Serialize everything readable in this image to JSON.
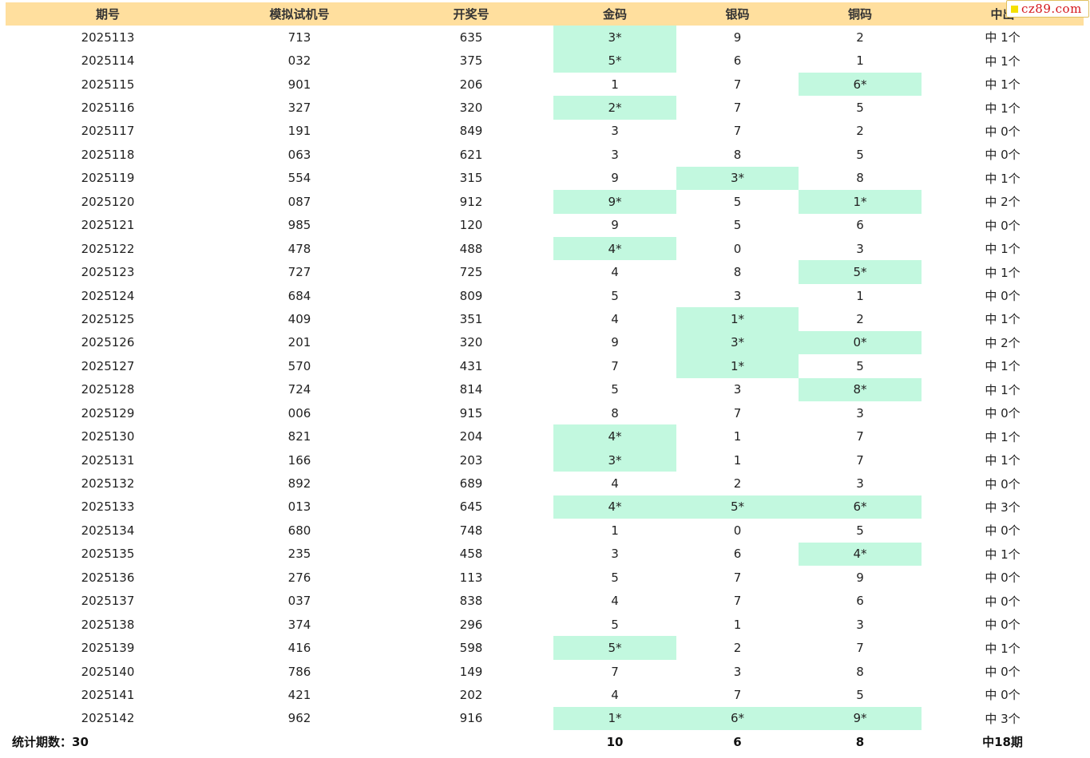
{
  "columns": [
    "期号",
    "模拟试机号",
    "开奖号",
    "金码",
    "银码",
    "铜码",
    "中出"
  ],
  "rows": [
    {
      "period": "2025113",
      "sim": "713",
      "draw": "635",
      "gold": "3*",
      "silver": "9",
      "copper": "2",
      "hits": "中 1个"
    },
    {
      "period": "2025114",
      "sim": "032",
      "draw": "375",
      "gold": "5*",
      "silver": "6",
      "copper": "1",
      "hits": "中 1个"
    },
    {
      "period": "2025115",
      "sim": "901",
      "draw": "206",
      "gold": "1",
      "silver": "7",
      "copper": "6*",
      "hits": "中 1个"
    },
    {
      "period": "2025116",
      "sim": "327",
      "draw": "320",
      "gold": "2*",
      "silver": "7",
      "copper": "5",
      "hits": "中 1个"
    },
    {
      "period": "2025117",
      "sim": "191",
      "draw": "849",
      "gold": "3",
      "silver": "7",
      "copper": "2",
      "hits": "中 0个"
    },
    {
      "period": "2025118",
      "sim": "063",
      "draw": "621",
      "gold": "3",
      "silver": "8",
      "copper": "5",
      "hits": "中 0个"
    },
    {
      "period": "2025119",
      "sim": "554",
      "draw": "315",
      "gold": "9",
      "silver": "3*",
      "copper": "8",
      "hits": "中 1个"
    },
    {
      "period": "2025120",
      "sim": "087",
      "draw": "912",
      "gold": "9*",
      "silver": "5",
      "copper": "1*",
      "hits": "中 2个"
    },
    {
      "period": "2025121",
      "sim": "985",
      "draw": "120",
      "gold": "9",
      "silver": "5",
      "copper": "6",
      "hits": "中 0个"
    },
    {
      "period": "2025122",
      "sim": "478",
      "draw": "488",
      "gold": "4*",
      "silver": "0",
      "copper": "3",
      "hits": "中 1个"
    },
    {
      "period": "2025123",
      "sim": "727",
      "draw": "725",
      "gold": "4",
      "silver": "8",
      "copper": "5*",
      "hits": "中 1个"
    },
    {
      "period": "2025124",
      "sim": "684",
      "draw": "809",
      "gold": "5",
      "silver": "3",
      "copper": "1",
      "hits": "中 0个"
    },
    {
      "period": "2025125",
      "sim": "409",
      "draw": "351",
      "gold": "4",
      "silver": "1*",
      "copper": "2",
      "hits": "中 1个"
    },
    {
      "period": "2025126",
      "sim": "201",
      "draw": "320",
      "gold": "9",
      "silver": "3*",
      "copper": "0*",
      "hits": "中 2个"
    },
    {
      "period": "2025127",
      "sim": "570",
      "draw": "431",
      "gold": "7",
      "silver": "1*",
      "copper": "5",
      "hits": "中 1个"
    },
    {
      "period": "2025128",
      "sim": "724",
      "draw": "814",
      "gold": "5",
      "silver": "3",
      "copper": "8*",
      "hits": "中 1个"
    },
    {
      "period": "2025129",
      "sim": "006",
      "draw": "915",
      "gold": "8",
      "silver": "7",
      "copper": "3",
      "hits": "中 0个"
    },
    {
      "period": "2025130",
      "sim": "821",
      "draw": "204",
      "gold": "4*",
      "silver": "1",
      "copper": "7",
      "hits": "中 1个"
    },
    {
      "period": "2025131",
      "sim": "166",
      "draw": "203",
      "gold": "3*",
      "silver": "1",
      "copper": "7",
      "hits": "中 1个"
    },
    {
      "period": "2025132",
      "sim": "892",
      "draw": "689",
      "gold": "4",
      "silver": "2",
      "copper": "3",
      "hits": "中 0个"
    },
    {
      "period": "2025133",
      "sim": "013",
      "draw": "645",
      "gold": "4*",
      "silver": "5*",
      "copper": "6*",
      "hits": "中 3个"
    },
    {
      "period": "2025134",
      "sim": "680",
      "draw": "748",
      "gold": "1",
      "silver": "0",
      "copper": "5",
      "hits": "中 0个"
    },
    {
      "period": "2025135",
      "sim": "235",
      "draw": "458",
      "gold": "3",
      "silver": "6",
      "copper": "4*",
      "hits": "中 1个"
    },
    {
      "period": "2025136",
      "sim": "276",
      "draw": "113",
      "gold": "5",
      "silver": "7",
      "copper": "9",
      "hits": "中 0个"
    },
    {
      "period": "2025137",
      "sim": "037",
      "draw": "838",
      "gold": "4",
      "silver": "7",
      "copper": "6",
      "hits": "中 0个"
    },
    {
      "period": "2025138",
      "sim": "374",
      "draw": "296",
      "gold": "5",
      "silver": "1",
      "copper": "3",
      "hits": "中 0个"
    },
    {
      "period": "2025139",
      "sim": "416",
      "draw": "598",
      "gold": "5*",
      "silver": "2",
      "copper": "7",
      "hits": "中 1个"
    },
    {
      "period": "2025140",
      "sim": "786",
      "draw": "149",
      "gold": "7",
      "silver": "3",
      "copper": "8",
      "hits": "中 0个"
    },
    {
      "period": "2025141",
      "sim": "421",
      "draw": "202",
      "gold": "4",
      "silver": "7",
      "copper": "5",
      "hits": "中 0个"
    },
    {
      "period": "2025142",
      "sim": "962",
      "draw": "916",
      "gold": "1*",
      "silver": "6*",
      "copper": "9*",
      "hits": "中 3个"
    }
  ],
  "footer": {
    "label": "统计期数：30",
    "gold_total": "10",
    "silver_total": "6",
    "copper_total": "8",
    "hits_total": "中18期"
  },
  "watermark": {
    "text": "cz89.com"
  },
  "colors": {
    "header_bg": "#ffdf9e",
    "hit_bg": "#c2f8df",
    "watermark_text": "#d4151b"
  }
}
